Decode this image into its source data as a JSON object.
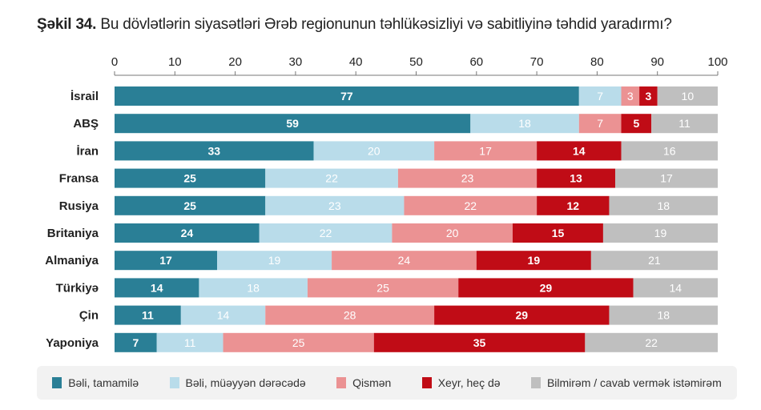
{
  "chart_data": {
    "type": "bar",
    "orientation": "horizontal",
    "stacked": true,
    "title_bold": "Şəkil 34.",
    "title": "Bu dövlətlərin siyasətləri Ərəb regionunun təhlükəsizliyi və sabitliyinə təhdid yaradırmı?",
    "xlim": [
      0,
      100
    ],
    "xticks": [
      0,
      10,
      20,
      30,
      40,
      50,
      60,
      70,
      80,
      90,
      100
    ],
    "axis_position": "top",
    "grid": false,
    "legend_placement": "bottom",
    "categories": [
      "İsrail",
      "ABŞ",
      "İran",
      "Fransa",
      "Rusiya",
      "Britaniya",
      "Almaniya",
      "Türkiyə",
      "Çin",
      "Yaponiya"
    ],
    "series": [
      {
        "name": "Bəli, tamamilə",
        "color": "#2a7f96",
        "label_color": "#ffffff",
        "values": [
          77,
          59,
          33,
          25,
          25,
          24,
          17,
          14,
          11,
          7
        ]
      },
      {
        "name": "Bəli, müəyyən dərəcədə",
        "color": "#b9dcea",
        "label_color": "#ffffff",
        "values": [
          7,
          18,
          20,
          22,
          23,
          22,
          19,
          18,
          14,
          11
        ]
      },
      {
        "name": "Qismən",
        "color": "#eb9293",
        "label_color": "#ffffff",
        "values": [
          3,
          7,
          17,
          23,
          22,
          20,
          24,
          25,
          28,
          25
        ]
      },
      {
        "name": "Xeyr, heç də",
        "color": "#c00c16",
        "label_color": "#ffffff",
        "values": [
          3,
          5,
          14,
          13,
          12,
          15,
          19,
          29,
          29,
          35
        ]
      },
      {
        "name": "Bilmirəm / cavab vermək istəmirəm",
        "color": "#bfbfbf",
        "label_color": "#ffffff",
        "values": [
          10,
          11,
          16,
          17,
          18,
          19,
          21,
          14,
          18,
          22
        ]
      }
    ]
  }
}
